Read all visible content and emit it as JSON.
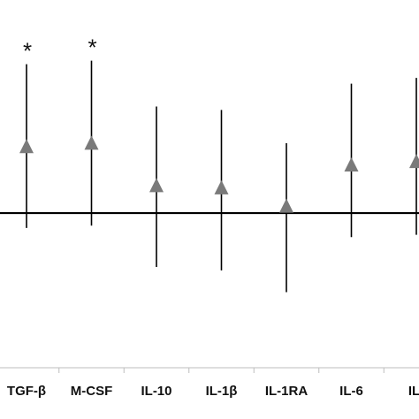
{
  "chart_data": {
    "type": "scatter",
    "categories": [
      "TGF-β",
      "M-CSF",
      "IL-10",
      "IL-1β",
      "IL-1RA",
      "IL-6",
      "IL-"
    ],
    "series": [
      {
        "values": [
          0.57,
          0.6,
          0.23,
          0.21,
          0.05,
          0.41,
          0.44
        ],
        "lower": [
          -0.13,
          -0.11,
          -0.47,
          -0.5,
          -0.69,
          -0.21,
          -0.19
        ],
        "upper": [
          1.3,
          1.33,
          0.93,
          0.9,
          0.61,
          1.13,
          1.18
        ]
      }
    ],
    "significance": [
      "*",
      "*",
      "",
      "",
      "",
      "",
      ""
    ],
    "reference_line": 0,
    "ylim": [
      -1.35,
      1.86
    ],
    "marker": "triangle",
    "marker_color": "#7a7a7a",
    "line_color": "#000000",
    "grid": false
  }
}
